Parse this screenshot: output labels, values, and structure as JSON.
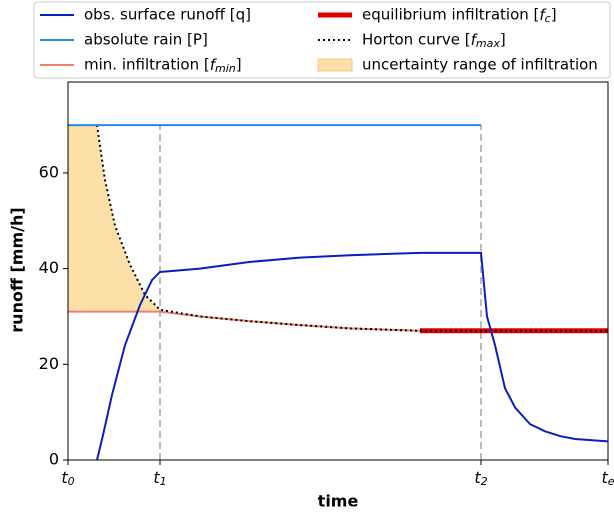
{
  "chart_data": {
    "type": "line",
    "x_label": "time",
    "y_label": "runoff [mm/h]",
    "xlim": [
      0,
      540
    ],
    "ylim": [
      0,
      79
    ],
    "xticks": [
      {
        "value": 0,
        "label": "t_0"
      },
      {
        "value": 92,
        "label": "t_1"
      },
      {
        "value": 413,
        "label": "t_2"
      },
      {
        "value": 540,
        "label": "t_e"
      }
    ],
    "yticks": [
      0,
      20,
      40,
      60
    ],
    "series": [
      {
        "name": "obs. surface runoff [q]",
        "color": "#0a1fbf",
        "style": "solid",
        "width": 2,
        "x": [
          29,
          35,
          44,
          57,
          72,
          84,
          92,
          132,
          182,
          232,
          282,
          352,
          413,
          419,
          427,
          437,
          447,
          462,
          477,
          492,
          507,
          540
        ],
        "values": [
          0,
          5.2,
          13.6,
          24,
          32.4,
          37.6,
          39.3,
          40,
          41.4,
          42.3,
          42.8,
          43.3,
          43.3,
          30,
          24,
          15,
          11,
          7.5,
          6,
          5,
          4.4,
          3.9
        ]
      },
      {
        "name": "absolute rain [P]",
        "color": "#2a8ae8",
        "style": "solid",
        "width": 2,
        "x": [
          0,
          413
        ],
        "values": [
          70,
          70
        ]
      },
      {
        "name": "min. infiltration [f_min]",
        "color": "#f08070",
        "style": "solid",
        "width": 2,
        "x": [
          0,
          92,
          132,
          182,
          232,
          282,
          352
        ],
        "values": [
          31,
          31,
          30,
          29,
          28.2,
          27.5,
          27
        ]
      },
      {
        "name": "equilibrium infiltration [f_c]",
        "color": "#e00000",
        "style": "solid",
        "width": 5,
        "x": [
          352,
          540
        ],
        "values": [
          27,
          27
        ]
      },
      {
        "name": "Horton curve [f_max]",
        "color": "#000000",
        "style": "dotted",
        "width": 2,
        "x": [
          29,
          37,
          47,
          62,
          77,
          92,
          132,
          182,
          232,
          282,
          352,
          540
        ],
        "values": [
          70,
          58.5,
          49,
          40.8,
          34.5,
          31.4,
          30,
          29,
          28.2,
          27.5,
          27,
          27
        ]
      }
    ],
    "band": {
      "name": "uncertainty range of infiltration",
      "color": "#fddfa8",
      "x": [
        0,
        29,
        37,
        47,
        62,
        77,
        92
      ],
      "upper": [
        70,
        70,
        58.5,
        49,
        40.8,
        34.5,
        31.4
      ],
      "lower": [
        31,
        31,
        31,
        31,
        31,
        31,
        31
      ]
    },
    "markers": [
      1,
      2
    ]
  }
}
